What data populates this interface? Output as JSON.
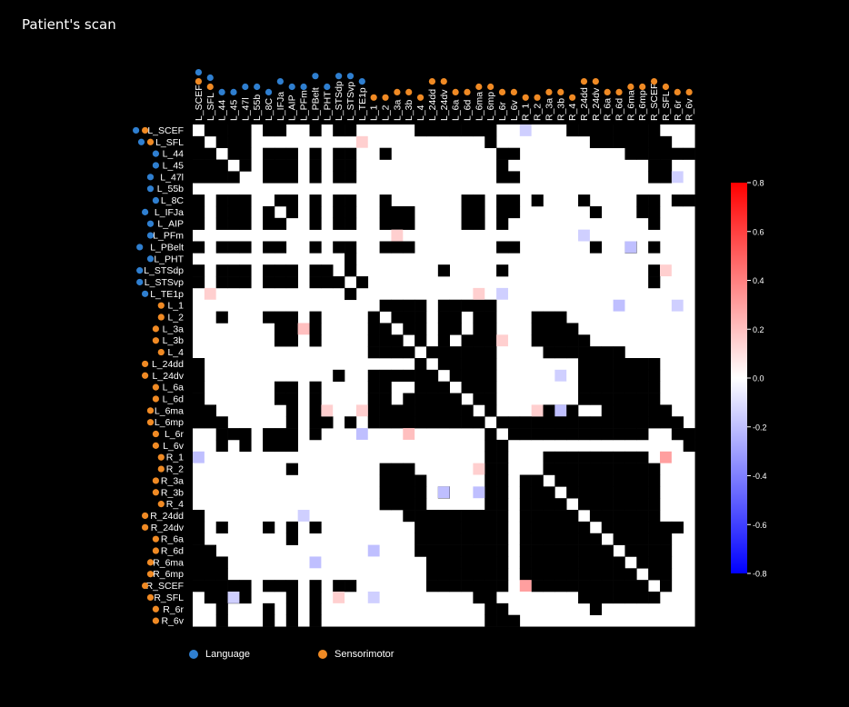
{
  "title": "Patient's scan",
  "colors": {
    "language": "#2f7fd0",
    "sensorimotor": "#f08a24",
    "positive": "#ff0000",
    "negative": "#0000ff",
    "connection": "#000000",
    "background": "#ffffff"
  },
  "legend": {
    "language": "Language",
    "sensorimotor": "Sensorimotor"
  },
  "chart_data": {
    "type": "heatmap",
    "regions": [
      "L_SCEF",
      "L_SFL",
      "L_44",
      "L_45",
      "L_47l",
      "L_55b",
      "L_8C",
      "L_IFJa",
      "L_AIP",
      "L_PFm",
      "L_PBelt",
      "L_PHT",
      "L_STSdp",
      "L_STSvp",
      "L_TE1p",
      "L_1",
      "L_2",
      "L_3a",
      "L_3b",
      "L_4",
      "L_24dd",
      "L_24dv",
      "L_6a",
      "L_6d",
      "L_6ma",
      "L_6mp",
      "L_6r",
      "L_6v",
      "R_1",
      "R_2",
      "R_3a",
      "R_3b",
      "R_4",
      "R_24dd",
      "R_24dv",
      "R_6a",
      "R_6d",
      "R_6ma",
      "R_6mp",
      "R_SCEF",
      "R_SFL",
      "R_6r",
      "R_6v"
    ],
    "networks": {
      "L_SCEF": [
        "language",
        "sensorimotor"
      ],
      "L_SFL": [
        "language",
        "sensorimotor"
      ],
      "L_44": [
        "language"
      ],
      "L_45": [
        "language"
      ],
      "L_47l": [
        "language"
      ],
      "L_55b": [
        "language"
      ],
      "L_8C": [
        "language"
      ],
      "L_IFJa": [
        "language"
      ],
      "L_AIP": [
        "language"
      ],
      "L_PFm": [
        "language"
      ],
      "L_PBelt": [
        "language"
      ],
      "L_PHT": [
        "language"
      ],
      "L_STSdp": [
        "language"
      ],
      "L_STSvp": [
        "language"
      ],
      "L_TE1p": [
        "language"
      ],
      "L_1": [
        "sensorimotor"
      ],
      "L_2": [
        "sensorimotor"
      ],
      "L_3a": [
        "sensorimotor"
      ],
      "L_3b": [
        "sensorimotor"
      ],
      "L_4": [
        "sensorimotor"
      ],
      "L_24dd": [
        "sensorimotor"
      ],
      "L_24dv": [
        "sensorimotor"
      ],
      "L_6a": [
        "sensorimotor"
      ],
      "L_6d": [
        "sensorimotor"
      ],
      "L_6ma": [
        "sensorimotor"
      ],
      "L_6mp": [
        "sensorimotor"
      ],
      "L_6r": [
        "sensorimotor"
      ],
      "L_6v": [
        "sensorimotor"
      ],
      "R_1": [
        "sensorimotor"
      ],
      "R_2": [
        "sensorimotor"
      ],
      "R_3a": [
        "sensorimotor"
      ],
      "R_3b": [
        "sensorimotor"
      ],
      "R_4": [
        "sensorimotor"
      ],
      "R_24dd": [
        "sensorimotor"
      ],
      "R_24dv": [
        "sensorimotor"
      ],
      "R_6a": [
        "sensorimotor"
      ],
      "R_6d": [
        "sensorimotor"
      ],
      "R_6ma": [
        "sensorimotor"
      ],
      "R_6mp": [
        "sensorimotor"
      ],
      "R_SCEF": [
        "sensorimotor"
      ],
      "R_SFL": [
        "sensorimotor"
      ],
      "R_6r": [
        "sensorimotor"
      ],
      "R_6v": [
        "sensorimotor"
      ]
    },
    "connection_rows": [
      [
        1,
        2,
        3,
        4,
        6,
        7,
        10,
        12,
        13,
        19,
        20,
        21,
        22,
        23,
        24,
        25,
        32,
        33,
        34,
        35,
        36,
        37,
        38,
        39
      ],
      [
        0,
        2,
        3,
        4,
        25,
        34,
        35,
        36,
        37,
        38,
        39,
        40
      ],
      [
        0,
        1,
        3,
        4,
        6,
        7,
        8,
        10,
        12,
        13,
        16,
        26,
        27,
        37,
        38,
        39,
        40,
        41,
        42
      ],
      [
        0,
        1,
        2,
        4,
        6,
        7,
        8,
        10,
        12,
        13,
        26,
        39,
        40
      ],
      [
        0,
        1,
        2,
        3,
        6,
        7,
        8,
        10,
        12,
        13,
        26,
        27,
        39,
        40
      ],
      [],
      [
        0,
        2,
        3,
        4,
        7,
        8,
        10,
        12,
        13,
        16,
        23,
        24,
        26,
        27,
        29,
        33,
        38,
        39,
        41,
        42
      ],
      [
        0,
        2,
        3,
        4,
        6,
        8,
        10,
        12,
        13,
        16,
        17,
        18,
        23,
        24,
        26,
        27,
        34,
        38,
        39
      ],
      [
        0,
        2,
        3,
        4,
        6,
        7,
        10,
        12,
        13,
        16,
        17,
        18,
        23,
        24,
        26,
        39
      ],
      [],
      [
        0,
        2,
        3,
        4,
        6,
        7,
        10,
        12,
        13,
        16,
        17,
        18,
        26,
        27,
        34,
        37,
        39
      ],
      [
        13
      ],
      [
        0,
        2,
        3,
        4,
        6,
        7,
        8,
        10,
        11,
        13,
        21,
        26,
        39
      ],
      [
        0,
        2,
        3,
        4,
        6,
        7,
        8,
        10,
        11,
        12,
        14,
        39
      ],
      [
        13
      ],
      [
        16,
        17,
        18,
        19,
        21,
        22,
        23,
        24,
        25
      ],
      [
        2,
        6,
        7,
        8,
        10,
        15,
        17,
        18,
        19,
        21,
        22,
        24,
        25,
        29,
        30,
        31
      ],
      [
        7,
        8,
        10,
        15,
        16,
        18,
        19,
        21,
        22,
        24,
        25,
        29,
        30,
        31,
        32
      ],
      [
        7,
        8,
        10,
        15,
        16,
        17,
        19,
        21,
        23,
        24,
        25,
        29,
        30,
        31,
        32,
        33
      ],
      [
        15,
        16,
        17,
        18,
        20,
        21,
        22,
        23,
        24,
        25,
        30,
        31,
        32,
        33,
        34,
        35,
        36
      ],
      [
        0,
        19,
        21,
        22,
        23,
        24,
        25,
        33,
        34,
        35,
        36,
        37,
        38,
        39
      ],
      [
        0,
        12,
        15,
        16,
        17,
        18,
        19,
        20,
        22,
        23,
        24,
        25,
        33,
        34,
        35,
        36,
        37,
        38,
        39
      ],
      [
        0,
        7,
        8,
        10,
        15,
        16,
        19,
        20,
        21,
        23,
        24,
        25,
        33,
        34,
        35,
        36,
        37,
        38,
        39
      ],
      [
        0,
        7,
        8,
        10,
        15,
        16,
        18,
        19,
        20,
        21,
        22,
        24,
        25,
        33,
        34,
        35,
        36,
        37,
        38,
        39
      ],
      [
        0,
        1,
        8,
        10,
        15,
        16,
        17,
        18,
        19,
        20,
        21,
        22,
        23,
        25,
        30,
        31,
        32,
        35,
        36,
        37,
        38,
        39,
        40
      ],
      [
        0,
        1,
        2,
        8,
        10,
        11,
        13,
        15,
        16,
        17,
        18,
        19,
        20,
        21,
        22,
        23,
        24,
        26,
        27,
        28,
        29,
        30,
        31,
        32,
        33,
        34,
        35,
        36,
        37,
        38,
        39,
        40,
        41
      ],
      [
        2,
        3,
        4,
        6,
        7,
        8,
        10,
        25,
        27,
        28,
        29,
        30,
        31,
        32,
        33,
        34,
        35,
        36,
        37,
        38,
        41,
        42
      ],
      [
        2,
        4,
        6,
        7,
        8,
        25,
        26,
        42
      ],
      [
        25,
        26,
        30,
        31,
        32,
        33,
        34,
        35,
        36,
        37,
        38
      ],
      [
        8,
        16,
        17,
        18,
        25,
        26,
        30,
        31,
        32,
        33,
        34,
        35,
        36,
        37,
        38,
        39
      ],
      [
        16,
        17,
        18,
        19,
        25,
        26,
        28,
        29,
        31,
        32,
        33,
        34,
        35,
        36,
        37,
        38,
        39
      ],
      [
        16,
        17,
        18,
        19,
        21,
        25,
        26,
        28,
        29,
        30,
        32,
        33,
        34,
        35,
        36,
        37,
        38,
        39
      ],
      [
        16,
        17,
        18,
        19,
        25,
        26,
        28,
        29,
        30,
        31,
        33,
        34,
        35,
        36,
        37,
        38,
        39
      ],
      [
        0,
        18,
        19,
        20,
        21,
        22,
        23,
        24,
        25,
        26,
        28,
        29,
        30,
        31,
        32,
        34,
        35,
        36,
        37,
        38,
        39
      ],
      [
        0,
        2,
        6,
        8,
        10,
        19,
        20,
        21,
        22,
        23,
        24,
        25,
        26,
        28,
        29,
        30,
        31,
        32,
        33,
        35,
        36,
        37,
        38,
        39,
        40,
        41
      ],
      [
        0,
        8,
        19,
        20,
        21,
        22,
        23,
        24,
        25,
        26,
        28,
        29,
        30,
        31,
        32,
        33,
        34,
        36,
        37,
        38,
        39,
        40
      ],
      [
        0,
        1,
        19,
        20,
        21,
        22,
        23,
        24,
        25,
        26,
        28,
        29,
        30,
        31,
        32,
        33,
        34,
        35,
        37,
        38,
        39,
        40
      ],
      [
        0,
        1,
        2,
        20,
        21,
        22,
        23,
        24,
        25,
        26,
        28,
        29,
        30,
        31,
        32,
        33,
        34,
        35,
        36,
        38,
        39,
        40
      ],
      [
        0,
        1,
        2,
        20,
        21,
        22,
        23,
        24,
        25,
        26,
        28,
        29,
        30,
        31,
        32,
        33,
        34,
        35,
        36,
        37,
        39,
        40
      ],
      [
        0,
        1,
        2,
        3,
        4,
        6,
        7,
        8,
        10,
        12,
        13,
        20,
        21,
        22,
        23,
        24,
        25,
        26,
        29,
        30,
        31,
        32,
        33,
        34,
        35,
        36,
        37,
        38,
        40
      ],
      [
        1,
        2,
        3,
        4,
        8,
        10,
        24,
        25,
        33,
        34,
        35,
        36,
        37,
        38,
        39
      ],
      [
        2,
        6,
        8,
        10,
        25,
        26,
        34
      ],
      [
        2,
        6,
        8,
        10,
        25,
        26,
        27
      ]
    ],
    "weighted_cells": [
      {
        "row": 0,
        "col": 28,
        "value": -0.15
      },
      {
        "row": 1,
        "col": 14,
        "value": 0.15
      },
      {
        "row": 4,
        "col": 41,
        "value": -0.15
      },
      {
        "row": 9,
        "col": 17,
        "value": 0.15
      },
      {
        "row": 9,
        "col": 33,
        "value": -0.15
      },
      {
        "row": 10,
        "col": 37,
        "value": -0.2
      },
      {
        "row": 12,
        "col": 40,
        "value": 0.15
      },
      {
        "row": 14,
        "col": 1,
        "value": 0.15
      },
      {
        "row": 14,
        "col": 24,
        "value": 0.15
      },
      {
        "row": 14,
        "col": 26,
        "value": -0.15
      },
      {
        "row": 15,
        "col": 36,
        "value": -0.2
      },
      {
        "row": 15,
        "col": 41,
        "value": -0.15
      },
      {
        "row": 17,
        "col": 9,
        "value": 0.2
      },
      {
        "row": 18,
        "col": 26,
        "value": 0.15
      },
      {
        "row": 21,
        "col": 31,
        "value": -0.15
      },
      {
        "row": 24,
        "col": 11,
        "value": 0.15
      },
      {
        "row": 24,
        "col": 14,
        "value": 0.15
      },
      {
        "row": 24,
        "col": 29,
        "value": 0.15
      },
      {
        "row": 24,
        "col": 31,
        "value": -0.2
      },
      {
        "row": 26,
        "col": 14,
        "value": -0.2
      },
      {
        "row": 26,
        "col": 18,
        "value": 0.2
      },
      {
        "row": 28,
        "col": 0,
        "value": -0.2
      },
      {
        "row": 28,
        "col": 40,
        "value": 0.3
      },
      {
        "row": 29,
        "col": 24,
        "value": 0.15
      },
      {
        "row": 31,
        "col": 21,
        "value": -0.2
      },
      {
        "row": 31,
        "col": 24,
        "value": -0.2
      },
      {
        "row": 33,
        "col": 9,
        "value": -0.15
      },
      {
        "row": 36,
        "col": 15,
        "value": -0.2
      },
      {
        "row": 37,
        "col": 10,
        "value": -0.2
      },
      {
        "row": 39,
        "col": 28,
        "value": 0.3
      },
      {
        "row": 40,
        "col": 3,
        "value": -0.15
      },
      {
        "row": 40,
        "col": 12,
        "value": 0.15
      },
      {
        "row": 40,
        "col": 15,
        "value": -0.15
      }
    ],
    "colorbar": {
      "min": -0.8,
      "max": 0.8,
      "ticks": [
        "0.8",
        "0.6",
        "0.4",
        "0.2",
        "0.0",
        "-0.2",
        "-0.4",
        "-0.6",
        "-0.8"
      ]
    }
  }
}
